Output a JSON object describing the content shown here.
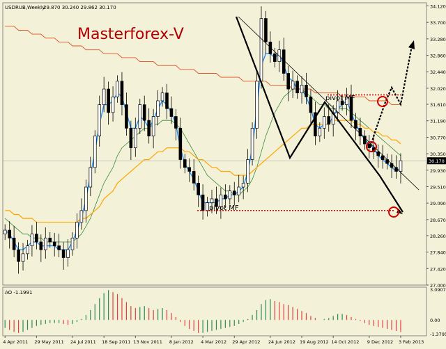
{
  "header": {
    "symbol_text": "USDRUB,Weekly",
    "ohlc_text": "29.870 30.240 29.862 30.170"
  },
  "watermark": "Masterforex-V",
  "annotations": {
    "pivot_upper": "pivot MF",
    "pivot_lower": "pivot MF"
  },
  "price_label": "30.170",
  "ao_label": "AO -1.1991",
  "colors": {
    "background": "#f3f1d8",
    "bull_candle": "#000000",
    "bear_candle": "#000000",
    "ma_blue": "#1e90ff",
    "ma_green": "#3a8a3a",
    "ma_orange": "#ffa500",
    "ma_red": "#e05020",
    "ao_up": "#2e8b57",
    "ao_down": "#e04040",
    "pivot_line": "#c00000",
    "circle": "#d00000",
    "watermark": "#b00000"
  },
  "chart_data": [
    {
      "type": "candlestick",
      "title": "USDRUB,Weekly",
      "yticks": [
        "34.120",
        "33.700",
        "33.280",
        "32.860",
        "32.440",
        "32.020",
        "31.610",
        "31.190",
        "30.770",
        "30.350",
        "29.930",
        "29.510",
        "29.090",
        "28.670",
        "28.260",
        "27.840",
        "27.420",
        "27.000"
      ],
      "ylim": [
        27.0,
        34.2
      ],
      "xticks": [
        "4 Apr 2011",
        "29 May 2011",
        "24 Jul 2011",
        "18 Sep 2011",
        "13 Nov 2011",
        "8 Jan 2012",
        "4 Mar 2012",
        "29 Apr 2012",
        "24 Jun 2012",
        "19 Aug 2012",
        "14 Oct 2012",
        "9 Dec 2012",
        "3 Feb 2013"
      ],
      "last_price": 30.17,
      "pivot_levels": [
        31.85,
        28.9
      ],
      "close": [
        28.4,
        28.2,
        27.9,
        27.6,
        27.8,
        28.0,
        28.3,
        28.1,
        27.9,
        28.2,
        28.1,
        28.0,
        27.9,
        27.7,
        27.9,
        28.2,
        28.6,
        28.9,
        29.5,
        30.0,
        30.8,
        31.6,
        32.0,
        31.4,
        31.8,
        32.2,
        31.6,
        31.0,
        30.5,
        31.0,
        31.6,
        31.2,
        30.8,
        31.3,
        31.7,
        31.9,
        31.5,
        31.3,
        31.0,
        30.2,
        30.0,
        29.9,
        29.6,
        29.3,
        28.9,
        29.1,
        29.2,
        29.0,
        29.3,
        29.2,
        29.4,
        29.3,
        29.5,
        29.6,
        30.2,
        31.0,
        32.2,
        33.8,
        33.2,
        32.9,
        32.7,
        33.0,
        32.4,
        32.0,
        32.2,
        31.9,
        32.1,
        31.8,
        31.4,
        30.8,
        31.0,
        31.3,
        31.1,
        31.4,
        31.7,
        31.6,
        31.8,
        31.2,
        31.0,
        30.8,
        30.6,
        30.5,
        30.4,
        30.3,
        30.2,
        30.1,
        30.0,
        29.9,
        30.17
      ],
      "series": [
        {
          "name": "MA fast (blue)",
          "values": [
            28.4,
            28.3,
            28.1,
            27.9,
            27.9,
            28.0,
            28.1,
            28.1,
            28.0,
            28.0,
            28.0,
            28.0,
            27.9,
            27.9,
            27.9,
            28.1,
            28.4,
            28.7,
            29.2,
            29.8,
            30.4,
            31.1,
            31.6,
            31.6,
            31.7,
            31.9,
            31.8,
            31.4,
            31.0,
            31.0,
            31.3,
            31.2,
            31.0,
            31.2,
            31.5,
            31.7,
            31.6,
            31.4,
            31.1,
            30.5,
            30.1,
            29.9,
            29.7,
            29.4,
            29.1,
            29.1,
            29.1,
            29.1,
            29.2,
            29.2,
            29.3,
            29.3,
            29.4,
            29.5,
            29.9,
            30.5,
            31.5,
            32.6,
            32.9,
            32.9,
            32.8,
            32.9,
            32.6,
            32.3,
            32.2,
            32.0,
            32.0,
            31.8,
            31.5,
            31.1,
            31.0,
            31.1,
            31.1,
            31.3,
            31.5,
            31.6,
            31.7,
            31.4,
            31.1,
            30.9,
            30.7,
            30.6,
            30.5,
            30.3,
            30.2,
            30.1,
            30.0,
            29.9,
            30.0
          ]
        },
        {
          "name": "MA mid (green)",
          "values": [
            28.7,
            28.6,
            28.5,
            28.4,
            28.3,
            28.3,
            28.2,
            28.2,
            28.2,
            28.1,
            28.1,
            28.1,
            28.1,
            28.1,
            28.1,
            28.1,
            28.2,
            28.3,
            28.5,
            28.7,
            29.0,
            29.3,
            29.6,
            29.8,
            30.0,
            30.3,
            30.5,
            30.6,
            30.7,
            30.8,
            30.9,
            31.0,
            31.0,
            31.1,
            31.1,
            31.2,
            31.2,
            31.2,
            31.1,
            31.0,
            30.8,
            30.6,
            30.4,
            30.2,
            30.0,
            29.8,
            29.7,
            29.6,
            29.5,
            29.4,
            29.4,
            29.3,
            29.3,
            29.4,
            29.5,
            29.7,
            30.0,
            30.4,
            30.8,
            31.1,
            31.4,
            31.6,
            31.8,
            31.9,
            32.0,
            32.0,
            32.0,
            31.9,
            31.8,
            31.7,
            31.6,
            31.6,
            31.5,
            31.5,
            31.5,
            31.5,
            31.5,
            31.4,
            31.3,
            31.2,
            31.1,
            31.0,
            30.9,
            30.8,
            30.7,
            30.6,
            30.5,
            30.4,
            30.3
          ]
        },
        {
          "name": "MA slow (orange)",
          "values": [
            28.9,
            28.9,
            28.8,
            28.8,
            28.7,
            28.7,
            28.7,
            28.6,
            28.6,
            28.6,
            28.6,
            28.6,
            28.6,
            28.6,
            28.6,
            28.6,
            28.6,
            28.7,
            28.7,
            28.8,
            28.9,
            29.0,
            29.2,
            29.3,
            29.4,
            29.6,
            29.7,
            29.8,
            29.9,
            30.0,
            30.1,
            30.2,
            30.2,
            30.3,
            30.4,
            30.4,
            30.5,
            30.5,
            30.5,
            30.5,
            30.4,
            30.4,
            30.3,
            30.2,
            30.2,
            30.1,
            30.0,
            30.0,
            29.9,
            29.9,
            29.9,
            29.8,
            29.8,
            29.8,
            29.8,
            29.9,
            30.0,
            30.1,
            30.2,
            30.3,
            30.4,
            30.5,
            30.6,
            30.7,
            30.8,
            30.9,
            31.0,
            31.0,
            31.1,
            31.1,
            31.1,
            31.1,
            31.1,
            31.2,
            31.2,
            31.2,
            31.2,
            31.2,
            31.1,
            31.1,
            31.0,
            31.0,
            30.9,
            30.9,
            30.8,
            30.8,
            30.7,
            30.7,
            30.6
          ]
        },
        {
          "name": "MA long (red)",
          "values": [
            33.6,
            33.6,
            33.6,
            33.5,
            33.5,
            33.5,
            33.4,
            33.4,
            33.4,
            33.3,
            33.3,
            33.3,
            33.2,
            33.2,
            33.2,
            33.1,
            33.1,
            33.1,
            33.0,
            33.0,
            33.0,
            33.0,
            32.9,
            32.9,
            32.9,
            32.9,
            32.8,
            32.8,
            32.8,
            32.8,
            32.7,
            32.7,
            32.7,
            32.7,
            32.6,
            32.6,
            32.6,
            32.6,
            32.6,
            32.5,
            32.5,
            32.5,
            32.5,
            32.4,
            32.4,
            32.4,
            32.4,
            32.4,
            32.3,
            32.3,
            32.3,
            32.3,
            32.3,
            32.2,
            32.2,
            32.2,
            32.2,
            32.2,
            32.2,
            32.1,
            32.1,
            32.1,
            32.1,
            32.1,
            32.0,
            32.0,
            32.0,
            32.0,
            32.0,
            31.9,
            31.9,
            31.9,
            31.9,
            31.9,
            31.9,
            31.8,
            31.8,
            31.8,
            31.8,
            31.8,
            31.8,
            31.7,
            31.7,
            31.7,
            31.7,
            31.7,
            31.6,
            31.6,
            31.6
          ]
        }
      ]
    },
    {
      "type": "bar",
      "title": "AO -1.1991",
      "yticks": [
        "3.0907",
        "0.00",
        "-1.3795"
      ],
      "ylim": [
        -1.3795,
        3.0907
      ],
      "values": [
        -0.8,
        -1.0,
        -1.2,
        -1.3,
        -1.2,
        -1.0,
        -0.8,
        -0.6,
        -0.5,
        -0.4,
        -0.3,
        -0.3,
        -0.3,
        -0.4,
        -0.5,
        -0.4,
        -0.2,
        0.1,
        0.5,
        1.0,
        1.6,
        2.2,
        2.7,
        3.0,
        2.8,
        2.6,
        2.2,
        1.8,
        1.4,
        1.2,
        1.3,
        1.4,
        1.2,
        1.0,
        1.1,
        1.2,
        1.0,
        0.7,
        0.3,
        -0.2,
        -0.6,
        -0.9,
        -1.1,
        -1.3,
        -1.3,
        -1.2,
        -1.1,
        -1.0,
        -0.9,
        -0.8,
        -0.7,
        -0.6,
        -0.4,
        -0.2,
        0.1,
        0.5,
        1.0,
        1.6,
        2.0,
        2.1,
        1.9,
        1.8,
        1.6,
        1.5,
        1.3,
        1.1,
        0.9,
        0.7,
        0.4,
        0.2,
        0.0,
        0.1,
        0.2,
        0.4,
        0.6,
        0.6,
        0.5,
        0.3,
        0.1,
        -0.1,
        -0.3,
        -0.5,
        -0.6,
        -0.7,
        -0.8,
        -0.9,
        -1.0,
        -1.1,
        -1.2
      ]
    }
  ]
}
